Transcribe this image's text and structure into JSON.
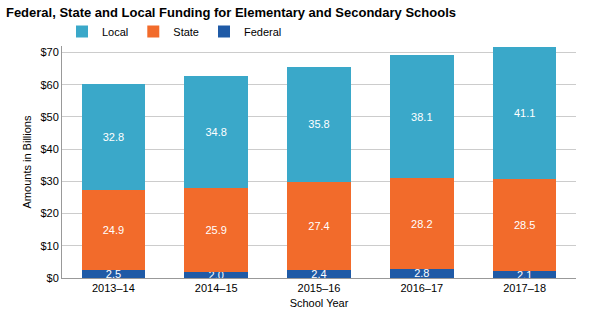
{
  "chart_data": {
    "type": "bar",
    "title": "Federal, State and Local Funding for Elementary and Secondary Schools",
    "x_label": "School Year",
    "y_label": "Amounts in Billions",
    "categories": [
      "2013–14",
      "2014–15",
      "2015–16",
      "2016–17",
      "2017–18"
    ],
    "series": [
      {
        "name": "Federal",
        "color": "#1f5aa6",
        "values": [
          2.5,
          2.0,
          2.4,
          2.8,
          2.1
        ],
        "value_labels": [
          "2.5",
          "2.0",
          "2.4",
          "2.8",
          "2.1"
        ]
      },
      {
        "name": "State",
        "color": "#f26b2b",
        "values": [
          24.9,
          25.9,
          27.4,
          28.2,
          28.5
        ]
      },
      {
        "name": "Local",
        "color": "#3aa8c9",
        "values": [
          32.8,
          34.8,
          35.8,
          38.1,
          41.1
        ]
      }
    ],
    "ylim": [
      0,
      72
    ],
    "yticks": [
      {
        "value": 0,
        "label": "$0"
      },
      {
        "value": 10,
        "label": "$10"
      },
      {
        "value": 20,
        "label": "$20"
      },
      {
        "value": 30,
        "label": "$30"
      },
      {
        "value": 40,
        "label": "$40"
      },
      {
        "value": 50,
        "label": "$50"
      },
      {
        "value": 60,
        "label": "$60"
      },
      {
        "value": 70,
        "label": "$70"
      }
    ],
    "stacked": true,
    "data_labels": true,
    "grid": true,
    "legend": "upper left"
  }
}
